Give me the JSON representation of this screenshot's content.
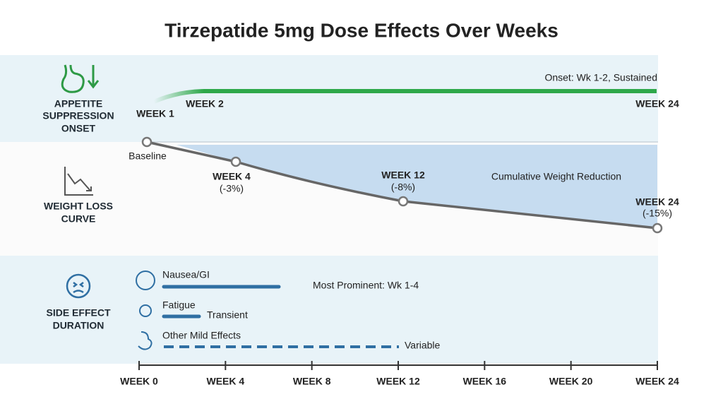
{
  "title": "Tirzepatide 5mg Dose Effects Over Weeks",
  "appetite": {
    "label": [
      "APPETITE",
      "SUPPRESSION",
      "ONSET"
    ],
    "note": "Onset: Wk 1-2, Sustained",
    "markers": [
      "WEEK 1",
      "WEEK 2",
      "WEEK 24"
    ]
  },
  "weight_loss": {
    "label": [
      "WEIGHT LOSS",
      "CURVE"
    ],
    "area_label": "Cumulative Weight Reduction",
    "points": [
      {
        "label": "Baseline"
      },
      {
        "label": "WEEK 4",
        "change": "(-3%)"
      },
      {
        "label": "WEEK 12",
        "change": "(-8%)"
      },
      {
        "label": "WEEK 24",
        "change": "(-15%)"
      }
    ]
  },
  "side_effects": {
    "label": [
      "SIDE EFFECT",
      "DURATION"
    ],
    "items": [
      {
        "name": "Nausea/GI",
        "note": "Most Prominent: Wk 1-4"
      },
      {
        "name": "Fatigue",
        "note": "Transient"
      },
      {
        "name": "Other Mild Effects",
        "note": "Variable"
      }
    ]
  },
  "x_axis": [
    "WEEK 0",
    "WEEK 4",
    "WEEK 8",
    "WEEK 12",
    "WEEK 16",
    "WEEK 20",
    "WEEK 24"
  ]
}
